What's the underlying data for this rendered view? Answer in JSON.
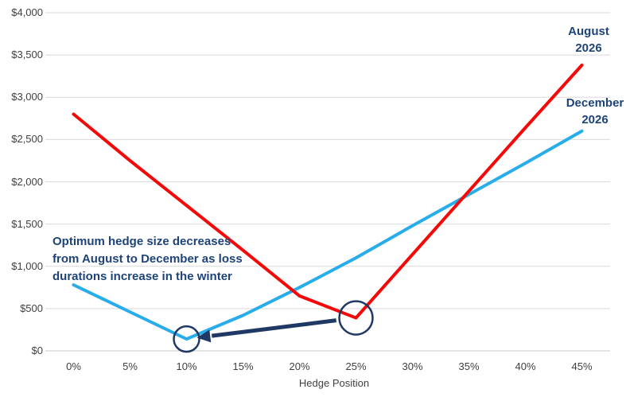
{
  "chart_data": {
    "type": "line",
    "title": "",
    "xlabel": "Hedge Position",
    "ylabel": "",
    "categories": [
      "0%",
      "5%",
      "10%",
      "15%",
      "20%",
      "25%",
      "30%",
      "35%",
      "40%",
      "45%"
    ],
    "series": [
      {
        "name": "August 2026",
        "color": "#f40808",
        "values": [
          2800,
          2250,
          1720,
          1190,
          650,
          390,
          1140,
          1890,
          2640,
          3380
        ]
      },
      {
        "name": "December 2026",
        "color": "#29adea",
        "values": [
          780,
          460,
          140,
          420,
          750,
          1100,
          1480,
          1850,
          2220,
          2600
        ]
      }
    ],
    "ylim": [
      0,
      4000
    ],
    "y_ticks": [
      {
        "label": "$0",
        "value": 0
      },
      {
        "label": "$500",
        "value": 500
      },
      {
        "label": "$1,000",
        "value": 1000
      },
      {
        "label": "$1,500",
        "value": 1500
      },
      {
        "label": "$2,000",
        "value": 2000
      },
      {
        "label": "$2,500",
        "value": 2500
      },
      {
        "label": "$3,000",
        "value": 3000
      },
      {
        "label": "$3,500",
        "value": 3500
      },
      {
        "label": "$4,000",
        "value": 4000
      }
    ],
    "grid": "horizontal",
    "legend_position": "end-of-line-labels",
    "colors": {
      "gridline": "#d9d9d9",
      "zero_line": "#c9c9c9",
      "axis_text": "#3f3f3f",
      "annotation_text": "#1e4378",
      "annotation_shapes": "#1f3864"
    },
    "annotation": {
      "lines": [
        "Optimum hedge size decreases",
        "from August to December as loss",
        "durations increase in the winter"
      ],
      "circled_points": [
        {
          "series": "August 2026",
          "category": "25%",
          "value": 390
        },
        {
          "series": "December 2026",
          "category": "10%",
          "value": 140
        }
      ],
      "arrow": {
        "from_series": "August 2026",
        "from_category": "25%",
        "to_series": "December 2026",
        "to_category": "10%"
      }
    }
  }
}
